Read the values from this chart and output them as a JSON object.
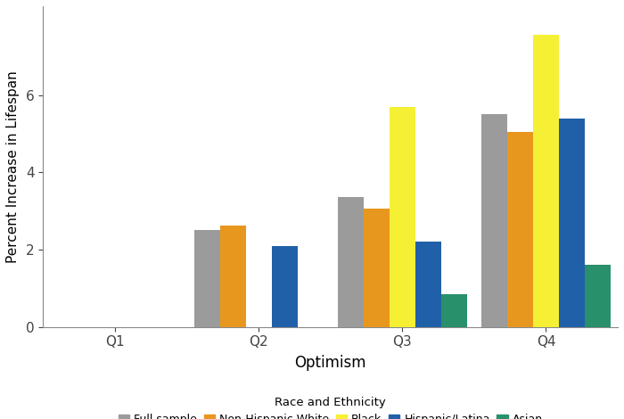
{
  "categories": [
    "Q1",
    "Q2",
    "Q3",
    "Q4"
  ],
  "series": {
    "Full sample": [
      0,
      2.5,
      3.35,
      5.5
    ],
    "Non-Hispanic White": [
      0,
      2.62,
      3.05,
      5.05
    ],
    "Black": [
      0,
      0.02,
      5.7,
      7.55
    ],
    "Hispanic/Latina": [
      0,
      2.1,
      2.2,
      5.4
    ],
    "Asian": [
      0,
      0,
      0.85,
      1.6
    ]
  },
  "colors": {
    "Full sample": "#9B9B9B",
    "Non-Hispanic White": "#E8971E",
    "Black": "#F5F033",
    "Hispanic/Latina": "#2060A8",
    "Asian": "#28906A"
  },
  "legend_title": "Race and Ethnicity",
  "xlabel": "Optimism",
  "ylabel": "Percent Increase in Lifespan",
  "ylim": [
    0,
    8.3
  ],
  "yticks": [
    0,
    2,
    4,
    6
  ],
  "background_color": "#ffffff",
  "bar_width": 0.18,
  "figsize": [
    7.0,
    4.7
  ]
}
